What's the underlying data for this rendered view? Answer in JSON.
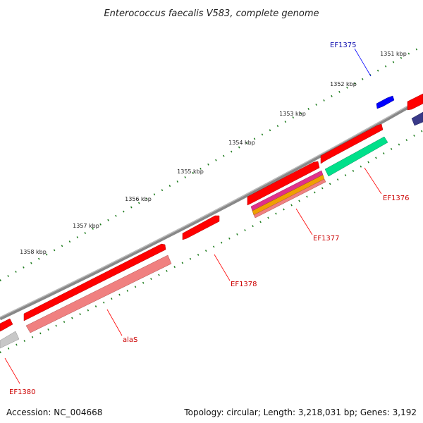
{
  "title": "Enterococcus faecalis V583, complete genome",
  "footer": {
    "accession": "Accession: NC_004668",
    "stats": "Topology: circular; Length: 3,218,031 bp; Genes: 3,192"
  },
  "colors": {
    "backbone": "#888888",
    "tick": "#1a7a1a",
    "red": "#ff0000",
    "pink": "#f08080",
    "green": "#00e08a",
    "blue": "#0000ff",
    "navy": "#3a3a88",
    "magenta": "#e0308a",
    "orange": "#f0a000",
    "grey": "#c8c8c8"
  },
  "ticks": [
    "1351 kbp",
    "1352 kbp",
    "1353 kbp",
    "1354 kbp",
    "1355 kbp",
    "1356 kbp",
    "1357 kbp",
    "1358 kbp"
  ],
  "genes": [
    {
      "name": "EF1375",
      "color": "blue"
    },
    {
      "name": "EF1376",
      "color": "red"
    },
    {
      "name": "EF1377",
      "color": "red"
    },
    {
      "name": "EF1378",
      "color": "red"
    },
    {
      "name": "alaS",
      "color": "red"
    },
    {
      "name": "EF1380",
      "color": "red"
    }
  ]
}
